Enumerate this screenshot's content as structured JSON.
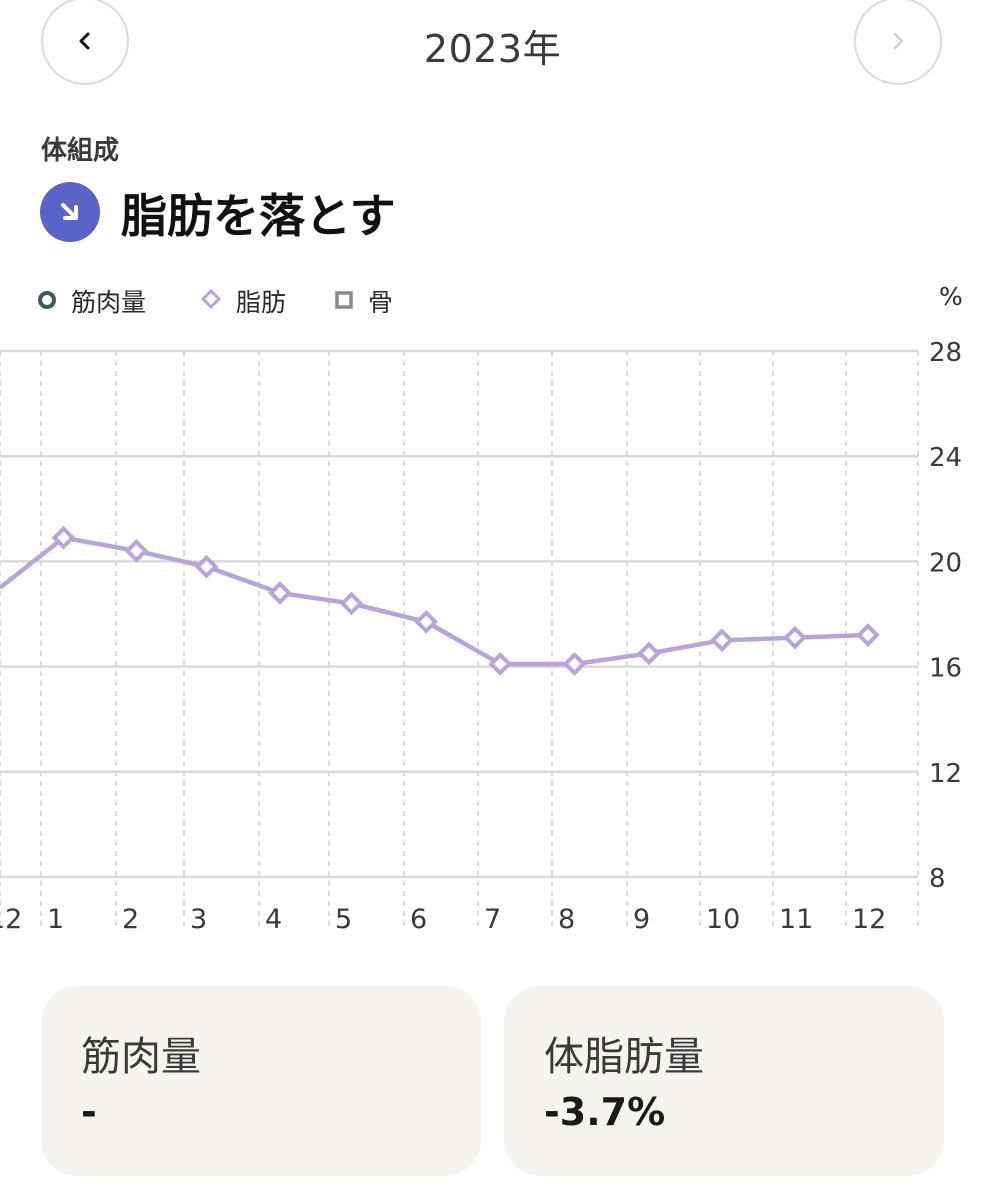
{
  "header": {
    "year": "2023年",
    "prev_icon": "chevron-left-icon",
    "next_icon": "chevron-right-icon"
  },
  "section": {
    "category": "体組成",
    "goal_icon": "arrow-down-right-icon",
    "goal_color": "#5a63c8",
    "goal": "脂肪を落とす"
  },
  "legend": {
    "muscle": "筋肉量",
    "fat": "脂肪",
    "bone": "骨",
    "unit": "%"
  },
  "chart_data": {
    "type": "line",
    "x": [
      "12",
      "1",
      "2",
      "3",
      "4",
      "5",
      "6",
      "7",
      "8",
      "9",
      "10",
      "11",
      "12"
    ],
    "series": [
      {
        "name": "脂肪",
        "color": "#b8a3dc",
        "points": [
          {
            "x": 1.3,
            "y": 20.9
          },
          {
            "x": 2.3,
            "y": 20.4
          },
          {
            "x": 3.3,
            "y": 19.8
          },
          {
            "x": 4.3,
            "y": 18.8
          },
          {
            "x": 5.3,
            "y": 18.4
          },
          {
            "x": 6.3,
            "y": 17.7
          },
          {
            "x": 7.3,
            "y": 16.1
          },
          {
            "x": 8.3,
            "y": 16.1
          },
          {
            "x": 9.3,
            "y": 16.5
          },
          {
            "x": 10.3,
            "y": 17.0
          },
          {
            "x": 11.3,
            "y": 17.1
          },
          {
            "x": 12.3,
            "y": 17.2
          }
        ],
        "start_value": 19.0
      }
    ],
    "y_ticks": [
      "28",
      "24",
      "20",
      "16",
      "12",
      "8"
    ],
    "ylim": [
      8,
      28
    ],
    "grid": true
  },
  "cards": [
    {
      "title": "筋肉量",
      "value": "-"
    },
    {
      "title": "体脂肪量",
      "value": "-3.7%"
    }
  ]
}
